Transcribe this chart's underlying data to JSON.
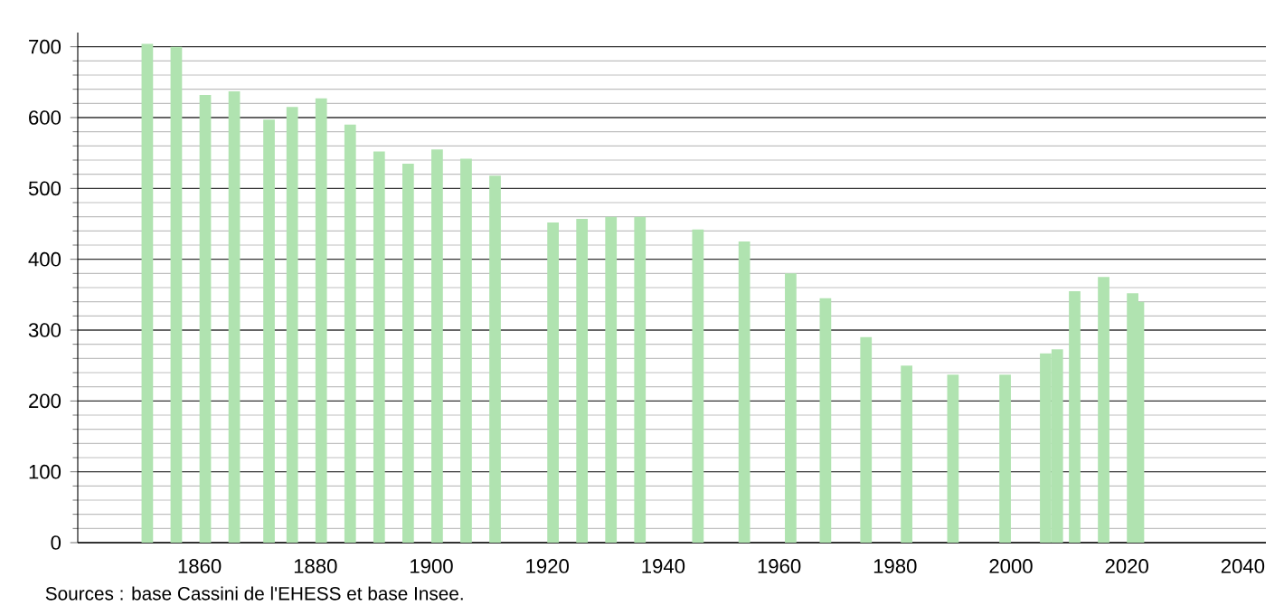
{
  "chart_data": {
    "type": "bar",
    "x": [
      1851,
      1856,
      1861,
      1866,
      1872,
      1876,
      1881,
      1886,
      1891,
      1896,
      1901,
      1906,
      1911,
      1921,
      1926,
      1931,
      1936,
      1946,
      1954,
      1962,
      1968,
      1975,
      1982,
      1990,
      1999,
      2006,
      2008,
      2011,
      2016,
      2021,
      2022
    ],
    "values": [
      704,
      700,
      632,
      637,
      597,
      615,
      627,
      590,
      552,
      535,
      555,
      542,
      518,
      452,
      457,
      460,
      460,
      442,
      425,
      380,
      345,
      290,
      250,
      237,
      237,
      267,
      273,
      355,
      375,
      352,
      340
    ],
    "color": "#b0e3b0",
    "xlim": [
      1839,
      2044
    ],
    "ylim": [
      0,
      720
    ],
    "xticks": [
      1860,
      1880,
      1900,
      1920,
      1940,
      1960,
      1980,
      2000,
      2020,
      2040
    ],
    "yticks": [
      0,
      100,
      200,
      300,
      400,
      500,
      600,
      700
    ],
    "grid": "y",
    "annotations": [
      "Sources : base Cassini de l'EHESS et base Insee."
    ]
  }
}
